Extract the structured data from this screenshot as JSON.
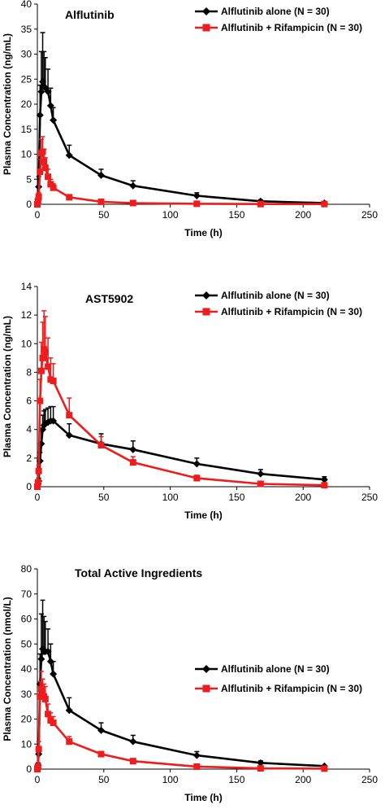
{
  "chart_data": [
    {
      "type": "line",
      "title": "Alflutinib",
      "xlabel": "Time (h)",
      "ylabel": "Plasma Concentration (ng/mL)",
      "xlim": [
        0,
        250
      ],
      "ylim": [
        0,
        40
      ],
      "xticks": [
        "0",
        "50",
        "100",
        "150",
        "200",
        "250"
      ],
      "yticks": [
        "0",
        "5",
        "10",
        "15",
        "20",
        "25",
        "30",
        "35",
        "40"
      ],
      "legend_position": "top-right",
      "series": [
        {
          "name": "Alflutinib alone (N = 30)",
          "color": "#000000",
          "marker": "diamond",
          "x": [
            0,
            0.5,
            1,
            2,
            3,
            4,
            5,
            6,
            8,
            10,
            12,
            24,
            48,
            72,
            120,
            168,
            216
          ],
          "y": [
            0,
            1.0,
            3.5,
            17.8,
            22.5,
            24.5,
            23.5,
            23.3,
            22.5,
            19.7,
            16.8,
            9.8,
            5.8,
            3.7,
            1.7,
            0.6,
            0.25
          ],
          "err": [
            0,
            0.5,
            2,
            6,
            8,
            9.8,
            7,
            6,
            4.5,
            3.5,
            2.5,
            2.0,
            1.2,
            1.0,
            0.6,
            0.3,
            0.1
          ]
        },
        {
          "name": "Alflutinib + Rifampicin  (N = 30)",
          "color": "#ee1c1c",
          "marker": "square",
          "x": [
            0,
            0.5,
            1,
            2,
            3,
            4,
            5,
            6,
            8,
            10,
            12,
            24,
            48,
            72,
            120,
            168,
            216
          ],
          "y": [
            0,
            0.6,
            1.5,
            6.5,
            10.2,
            10.5,
            8.5,
            7.3,
            5.5,
            4.0,
            3.3,
            1.4,
            0.5,
            0.25,
            0.1,
            0.05,
            0.05
          ],
          "err": [
            0,
            0.3,
            0.8,
            2.5,
            2.8,
            3.0,
            2.5,
            2.0,
            1.5,
            1.0,
            0.8,
            0.5,
            0.2,
            0.1,
            0.05,
            0,
            0
          ]
        }
      ]
    },
    {
      "type": "line",
      "title": "AST5902",
      "xlabel": "Time (h)",
      "ylabel": "Plasma Concentration (ng/mL)",
      "xlim": [
        0,
        250
      ],
      "ylim": [
        0,
        14
      ],
      "xticks": [
        "0",
        "50",
        "100",
        "150",
        "200",
        "250"
      ],
      "yticks": [
        "0",
        "2",
        "4",
        "6",
        "8",
        "10",
        "12",
        "14"
      ],
      "legend_position": "top-right",
      "series": [
        {
          "name": "Alflutinib alone (N = 30)",
          "color": "#000000",
          "marker": "diamond",
          "x": [
            0,
            0.5,
            1,
            2,
            3,
            4,
            5,
            6,
            8,
            10,
            12,
            24,
            48,
            72,
            120,
            168,
            216
          ],
          "y": [
            0,
            0.2,
            0.4,
            1.8,
            3.0,
            4.0,
            4.3,
            4.4,
            4.5,
            4.6,
            4.6,
            3.6,
            3.0,
            2.6,
            1.6,
            0.9,
            0.5
          ],
          "err": [
            0,
            0.1,
            0.2,
            0.6,
            0.9,
            1.0,
            1.0,
            1.0,
            1.0,
            1.0,
            1.0,
            0.8,
            0.7,
            0.6,
            0.4,
            0.3,
            0.2
          ]
        },
        {
          "name": "Alflutinib + Rifampicin  (N = 30)",
          "color": "#ee1c1c",
          "marker": "square",
          "x": [
            0,
            0.5,
            1,
            2,
            3,
            4,
            5,
            6,
            8,
            10,
            12,
            24,
            48,
            72,
            120,
            168,
            216
          ],
          "y": [
            0,
            0.3,
            1.1,
            6.0,
            8.1,
            9.0,
            9.6,
            9.4,
            8.4,
            7.5,
            7.4,
            5.0,
            2.9,
            1.7,
            0.6,
            0.2,
            0.1
          ],
          "err": [
            0,
            0.1,
            0.4,
            1.5,
            2.0,
            2.5,
            2.7,
            2.5,
            2.0,
            1.5,
            1.2,
            1.2,
            0.6,
            0.4,
            0.2,
            0.1,
            0.05
          ]
        }
      ]
    },
    {
      "type": "line",
      "title": "Total Active Ingredients",
      "xlabel": "Time (h)",
      "ylabel": "Plasma Concentration (nmol/L)",
      "xlim": [
        0,
        250
      ],
      "ylim": [
        0,
        80
      ],
      "xticks": [
        "0",
        "50",
        "100",
        "150",
        "200",
        "250"
      ],
      "yticks": [
        "0",
        "10",
        "20",
        "30",
        "40",
        "50",
        "60",
        "70",
        "80"
      ],
      "legend_position": "center-right",
      "series": [
        {
          "name": "Alflutinib alone (N = 30)",
          "color": "#000000",
          "marker": "diamond",
          "x": [
            0,
            0.5,
            1,
            2,
            3,
            4,
            5,
            6,
            8,
            10,
            12,
            24,
            48,
            72,
            120,
            168,
            216
          ],
          "y": [
            0,
            1.5,
            6,
            34,
            44,
            48,
            47,
            47,
            47,
            43,
            38,
            23.5,
            15.5,
            11,
            5.5,
            2.5,
            1.2
          ],
          "err": [
            0,
            1,
            3,
            12,
            18,
            19.5,
            14,
            12,
            9,
            7,
            5,
            5,
            3,
            2.5,
            1.5,
            0.8,
            0.3
          ]
        },
        {
          "name": "Alflutinib + Rifampicin  (N = 30)",
          "color": "#ee1c1c",
          "marker": "square",
          "x": [
            0,
            0.5,
            1,
            2,
            3,
            4,
            5,
            6,
            8,
            10,
            12,
            24,
            48,
            72,
            120,
            168,
            216
          ],
          "y": [
            0,
            1,
            8,
            29,
            32,
            30,
            29,
            28,
            22,
            19.5,
            18.5,
            11,
            6,
            3.2,
            1,
            0.3,
            0.2
          ],
          "err": [
            0,
            0.5,
            3,
            6,
            7,
            6,
            5,
            5,
            4,
            3,
            2.5,
            2,
            1,
            0.6,
            0.3,
            0.1,
            0.05
          ]
        }
      ]
    }
  ]
}
